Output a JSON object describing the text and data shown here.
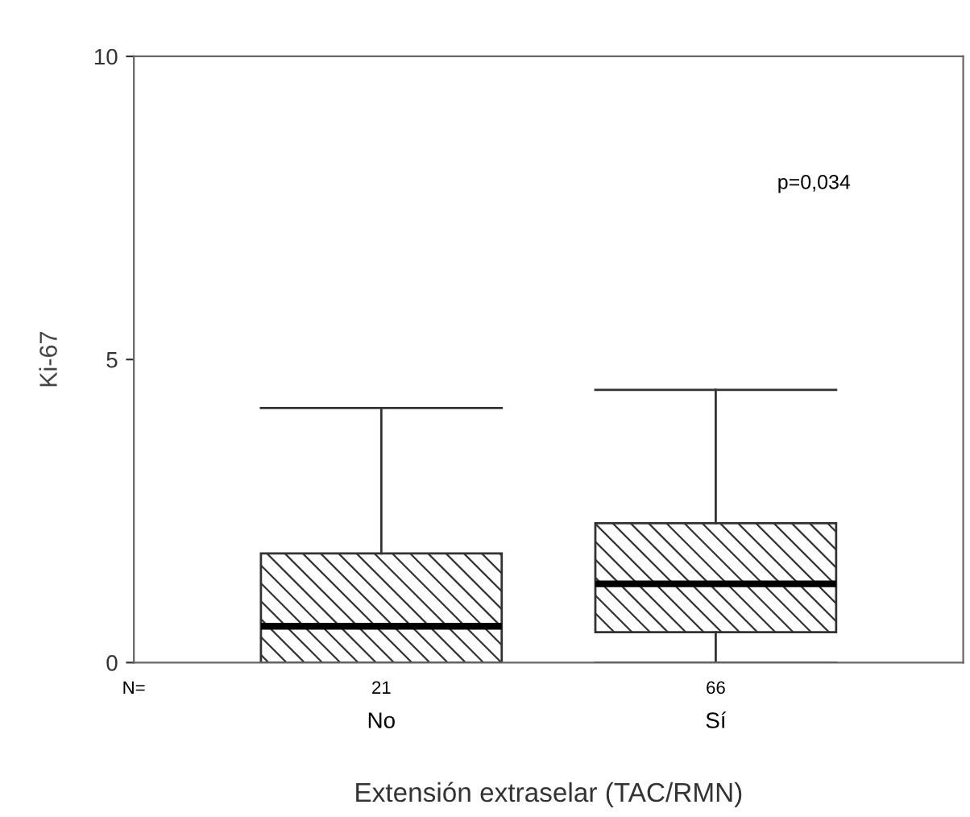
{
  "chart_data": {
    "type": "box",
    "xlabel": "Extensión extraselar (TAC/RMN)",
    "ylabel": "Ki-67",
    "categories": [
      "No",
      "Sí"
    ],
    "boxes": [
      {
        "low": 0,
        "q1": 0,
        "median": 0.6,
        "q3": 1.8,
        "high": 4.2
      },
      {
        "low": 0,
        "q1": 0.5,
        "median": 1.3,
        "q3": 2.3,
        "high": 4.5
      }
    ],
    "color": "#333333",
    "ylim": [
      0,
      10
    ],
    "yticks": [
      0,
      5,
      10
    ],
    "grid": false,
    "legend": false,
    "annotations": [
      "p=0,034",
      "N=",
      "21",
      "66"
    ]
  }
}
